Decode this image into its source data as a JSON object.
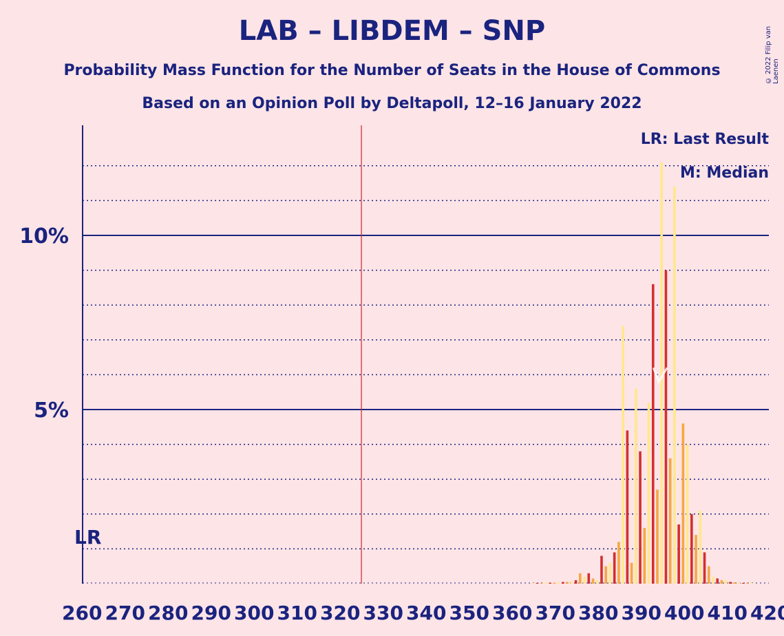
{
  "header": {
    "title": "LAB – LIBDEM – SNP",
    "subtitle": "Probability Mass Function for the Number of Seats in the House of Commons",
    "source": "Based on an Opinion Poll by Deltapoll, 12–16 January 2022",
    "copyright": "© 2022 Filip van Laenen"
  },
  "legend": {
    "lr": "LR: Last Result",
    "median": "M: Median"
  },
  "colors": {
    "background": "#fde4e7",
    "text": "#1a237e",
    "last_result_line": "#c62828",
    "series_red": "#d32f2f",
    "series_orange": "#f5a742",
    "series_yellow": "#ffe88a"
  },
  "chart_data": {
    "type": "bar",
    "x_range": [
      260,
      420
    ],
    "ylim": [
      0,
      13
    ],
    "y_unit": "%",
    "ytick_labels": [
      {
        "value": 5,
        "label": "5%"
      },
      {
        "value": 10,
        "label": "10%"
      }
    ],
    "y_gridlines": [
      1,
      2,
      3,
      4,
      6,
      7,
      8,
      9,
      11,
      12
    ],
    "xtick_labels": [
      "260",
      "270",
      "280",
      "290",
      "300",
      "310",
      "320",
      "330",
      "340",
      "350",
      "360",
      "370",
      "380",
      "390",
      "400",
      "410",
      "420"
    ],
    "last_result": {
      "x": 325,
      "label": "LR"
    },
    "median": {
      "x": 395,
      "label": "M"
    },
    "series": [
      {
        "color_key": "series_red",
        "values": [
          [
            366,
            0.02
          ],
          [
            369,
            0.03
          ],
          [
            372,
            0.05
          ],
          [
            375,
            0.1
          ],
          [
            378,
            0.3
          ],
          [
            381,
            0.8
          ],
          [
            384,
            0.9
          ],
          [
            387,
            4.4
          ],
          [
            390,
            3.8
          ],
          [
            393,
            8.6
          ],
          [
            396,
            9.0
          ],
          [
            399,
            1.7
          ],
          [
            402,
            2.0
          ],
          [
            405,
            0.9
          ],
          [
            408,
            0.15
          ],
          [
            411,
            0.05
          ],
          [
            414,
            0.02
          ]
        ]
      },
      {
        "color_key": "series_orange",
        "values": [
          [
            367,
            0.02
          ],
          [
            370,
            0.03
          ],
          [
            373,
            0.05
          ],
          [
            376,
            0.3
          ],
          [
            379,
            0.15
          ],
          [
            382,
            0.5
          ],
          [
            385,
            1.2
          ],
          [
            388,
            0.6
          ],
          [
            391,
            1.6
          ],
          [
            394,
            2.7
          ],
          [
            397,
            3.6
          ],
          [
            400,
            4.6
          ],
          [
            403,
            1.4
          ],
          [
            406,
            0.5
          ],
          [
            409,
            0.1
          ],
          [
            412,
            0.04
          ],
          [
            415,
            0.02
          ]
        ]
      },
      {
        "color_key": "series_yellow",
        "values": [
          [
            365,
            0.02
          ],
          [
            368,
            0.03
          ],
          [
            371,
            0.04
          ],
          [
            374,
            0.07
          ],
          [
            377,
            0.2
          ],
          [
            380,
            0.1
          ],
          [
            383,
            0.6
          ],
          [
            386,
            7.4
          ],
          [
            389,
            5.6
          ],
          [
            392,
            5.2
          ],
          [
            395,
            12.1
          ],
          [
            398,
            11.4
          ],
          [
            401,
            4.0
          ],
          [
            404,
            2.1
          ],
          [
            407,
            0.2
          ],
          [
            410,
            0.1
          ],
          [
            413,
            0.04
          ],
          [
            416,
            0.02
          ]
        ]
      }
    ]
  }
}
